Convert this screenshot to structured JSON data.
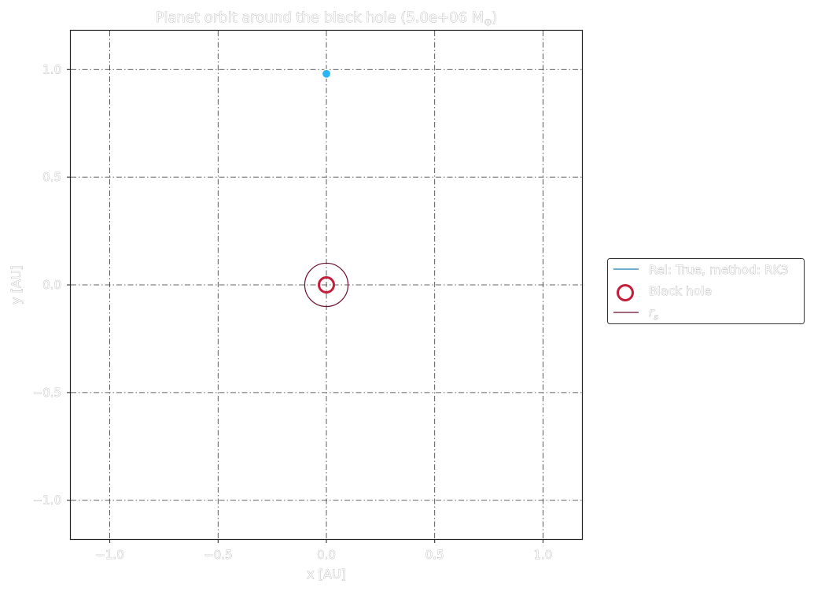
{
  "chart_data": {
    "type": "scatter",
    "title": "Planet orbit around the black hole (5.0e+06 M",
    "title_sub": "⊙",
    "title_end": ")",
    "xlabel": "x [AU]",
    "ylabel": "y [AU]",
    "xlim": [
      -1.18,
      1.18
    ],
    "ylim": [
      -1.18,
      1.18
    ],
    "grid": true,
    "grid_style": "dash-dot",
    "xticks": [
      -1.0,
      -0.5,
      0.0,
      0.5,
      1.0
    ],
    "yticks": [
      -1.0,
      -0.5,
      0.0,
      0.5,
      1.0
    ],
    "xtick_labels": [
      "−1.0",
      "−0.5",
      "0.0",
      "0.5",
      "1.0"
    ],
    "ytick_labels": [
      "−1.0",
      "−0.5",
      "0.0",
      "0.5",
      "1.0"
    ],
    "legend_placement": "outside-right",
    "series": [
      {
        "name": "Rel: True, method: RK3",
        "kind": "line",
        "color": "#1f77b4",
        "x": [
          0.0
        ],
        "y": [
          0.98
        ]
      },
      {
        "name": "Black hole",
        "kind": "marker",
        "color": "#c41e3a",
        "x": [
          0.0
        ],
        "y": [
          0.0
        ]
      },
      {
        "name": "r",
        "name_sub": "s",
        "kind": "circle",
        "color": "#6b0f2a",
        "center": [
          0.0,
          0.0
        ],
        "radius": 0.1
      }
    ],
    "planet": {
      "x": 0.0,
      "y": 0.98,
      "color": "#29b6f6"
    }
  }
}
